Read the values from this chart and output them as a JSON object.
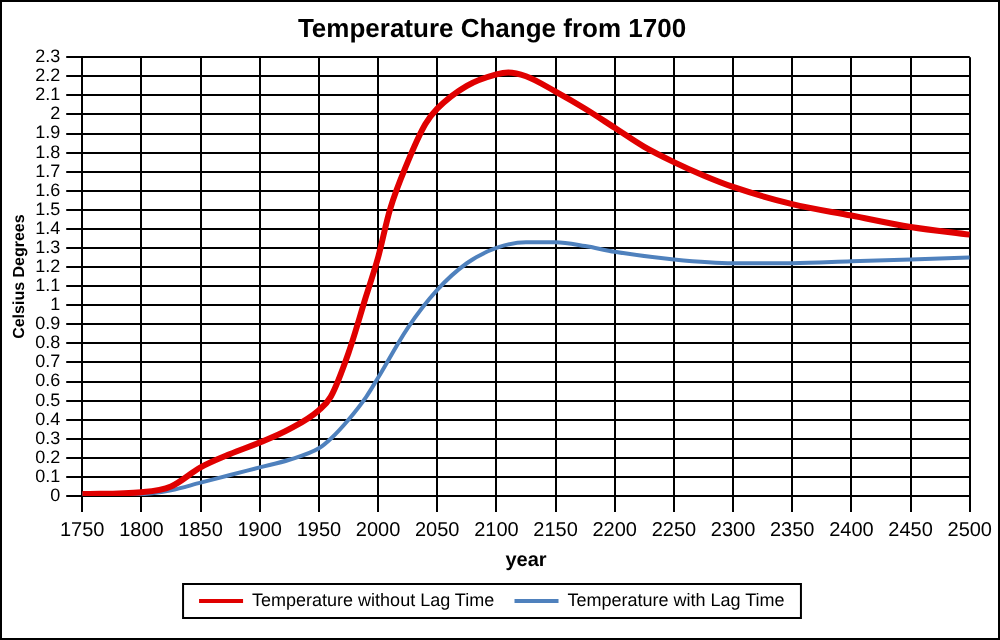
{
  "chart_data": {
    "type": "line",
    "title": "Temperature Change from 1700",
    "xlabel": "year",
    "ylabel": "Celsius Degrees",
    "xlim": [
      1750,
      2500
    ],
    "xticks": [
      1750,
      1800,
      1850,
      1900,
      1950,
      2000,
      2050,
      2100,
      2150,
      2200,
      2250,
      2300,
      2350,
      2400,
      2450,
      2500
    ],
    "ylim": [
      0,
      2.3
    ],
    "yticks": [
      0,
      0.1,
      0.2,
      0.3,
      0.4,
      0.5,
      0.6,
      0.7,
      0.8,
      0.9,
      1,
      1.1,
      1.2,
      1.3,
      1.4,
      1.5,
      1.6,
      1.7,
      1.8,
      1.9,
      2,
      2.1,
      2.2,
      2.3
    ],
    "grid": true,
    "legend": "bottom",
    "marker": "none",
    "line_style": "solid",
    "series": [
      {
        "name": "Temperature without Lag Time",
        "color": "#e00000",
        "x": [
          1750,
          1800,
          1825,
          1850,
          1875,
          1900,
          1925,
          1950,
          1960,
          1975,
          1990,
          2000,
          2010,
          2025,
          2040,
          2050,
          2075,
          2100,
          2110,
          2125,
          2150,
          2175,
          2200,
          2225,
          2250,
          2275,
          2300,
          2350,
          2400,
          2450,
          2500
        ],
        "values": [
          0.01,
          0.02,
          0.05,
          0.15,
          0.22,
          0.28,
          0.35,
          0.45,
          0.52,
          0.75,
          1.05,
          1.25,
          1.5,
          1.75,
          1.95,
          2.03,
          2.15,
          2.21,
          2.22,
          2.2,
          2.12,
          2.03,
          1.93,
          1.83,
          1.75,
          1.68,
          1.62,
          1.53,
          1.47,
          1.41,
          1.37
        ]
      },
      {
        "name": "Temperature with Lag Time",
        "color": "#4f81bd",
        "x": [
          1750,
          1800,
          1825,
          1850,
          1875,
          1900,
          1925,
          1950,
          1960,
          1975,
          1990,
          2000,
          2025,
          2050,
          2075,
          2100,
          2125,
          2150,
          2175,
          2200,
          2250,
          2300,
          2350,
          2400,
          2450,
          2500
        ],
        "values": [
          0.01,
          0.01,
          0.03,
          0.07,
          0.11,
          0.15,
          0.19,
          0.25,
          0.3,
          0.4,
          0.52,
          0.62,
          0.88,
          1.08,
          1.22,
          1.3,
          1.33,
          1.33,
          1.31,
          1.28,
          1.24,
          1.22,
          1.22,
          1.23,
          1.24,
          1.25
        ]
      }
    ]
  }
}
